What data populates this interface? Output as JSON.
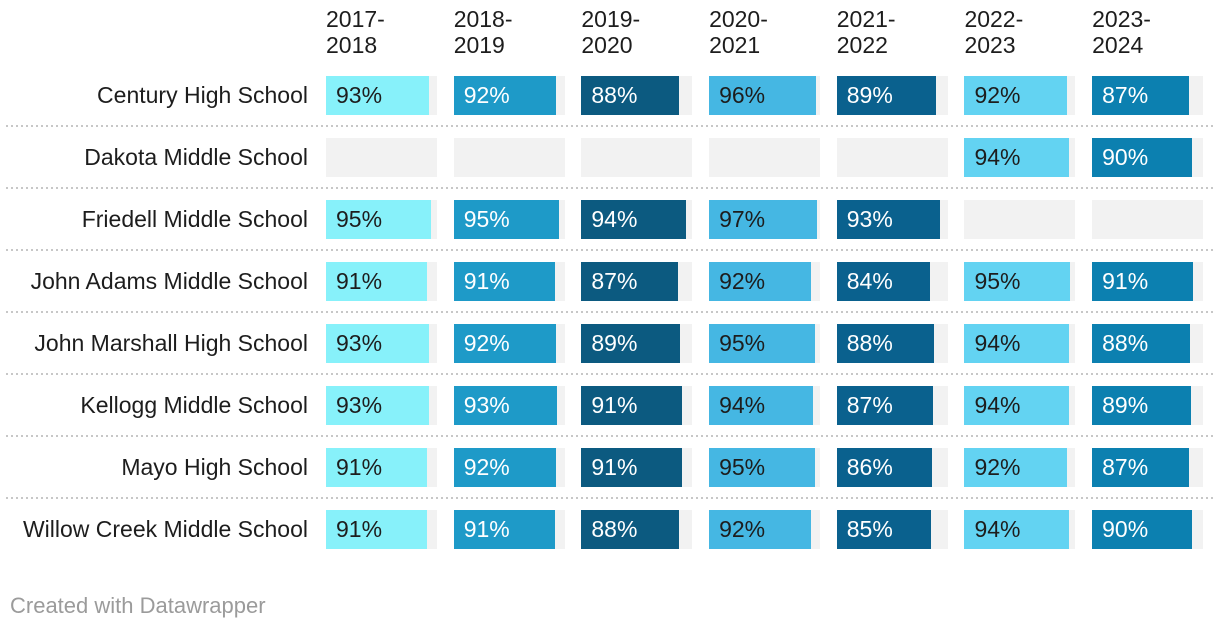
{
  "chart_data": {
    "type": "table",
    "value_format": "percent",
    "columns": [
      "2017-2018",
      "2018-2019",
      "2019-2020",
      "2020-2021",
      "2021-2022",
      "2022-2023",
      "2023-2024"
    ],
    "column_colors": [
      "#87F1FA",
      "#1E9AC8",
      "#0C5A80",
      "#45B7E3",
      "#0A618E",
      "#63D3F2",
      "#0C80B0"
    ],
    "column_text_colors": [
      "#1d1d1d",
      "#ffffff",
      "#ffffff",
      "#1d1d1d",
      "#ffffff",
      "#1d1d1d",
      "#ffffff"
    ],
    "empty_cell_color": "#f2f2f2",
    "rows": [
      {
        "label": "Century High School",
        "values": [
          93,
          92,
          88,
          96,
          89,
          92,
          87
        ]
      },
      {
        "label": "Dakota Middle School",
        "values": [
          null,
          null,
          null,
          null,
          null,
          94,
          90
        ]
      },
      {
        "label": "Friedell Middle School",
        "values": [
          95,
          95,
          94,
          97,
          93,
          null,
          null
        ]
      },
      {
        "label": "John Adams Middle School",
        "values": [
          91,
          91,
          87,
          92,
          84,
          95,
          91
        ]
      },
      {
        "label": "John Marshall High School",
        "values": [
          93,
          92,
          89,
          95,
          88,
          94,
          88
        ]
      },
      {
        "label": "Kellogg Middle School",
        "values": [
          93,
          93,
          91,
          94,
          87,
          94,
          89
        ]
      },
      {
        "label": "Mayo High School",
        "values": [
          91,
          92,
          91,
          95,
          86,
          92,
          87
        ]
      },
      {
        "label": "Willow Creek Middle School",
        "values": [
          91,
          91,
          88,
          92,
          85,
          94,
          90
        ]
      }
    ]
  },
  "footer": {
    "attribution": "Created with Datawrapper"
  }
}
